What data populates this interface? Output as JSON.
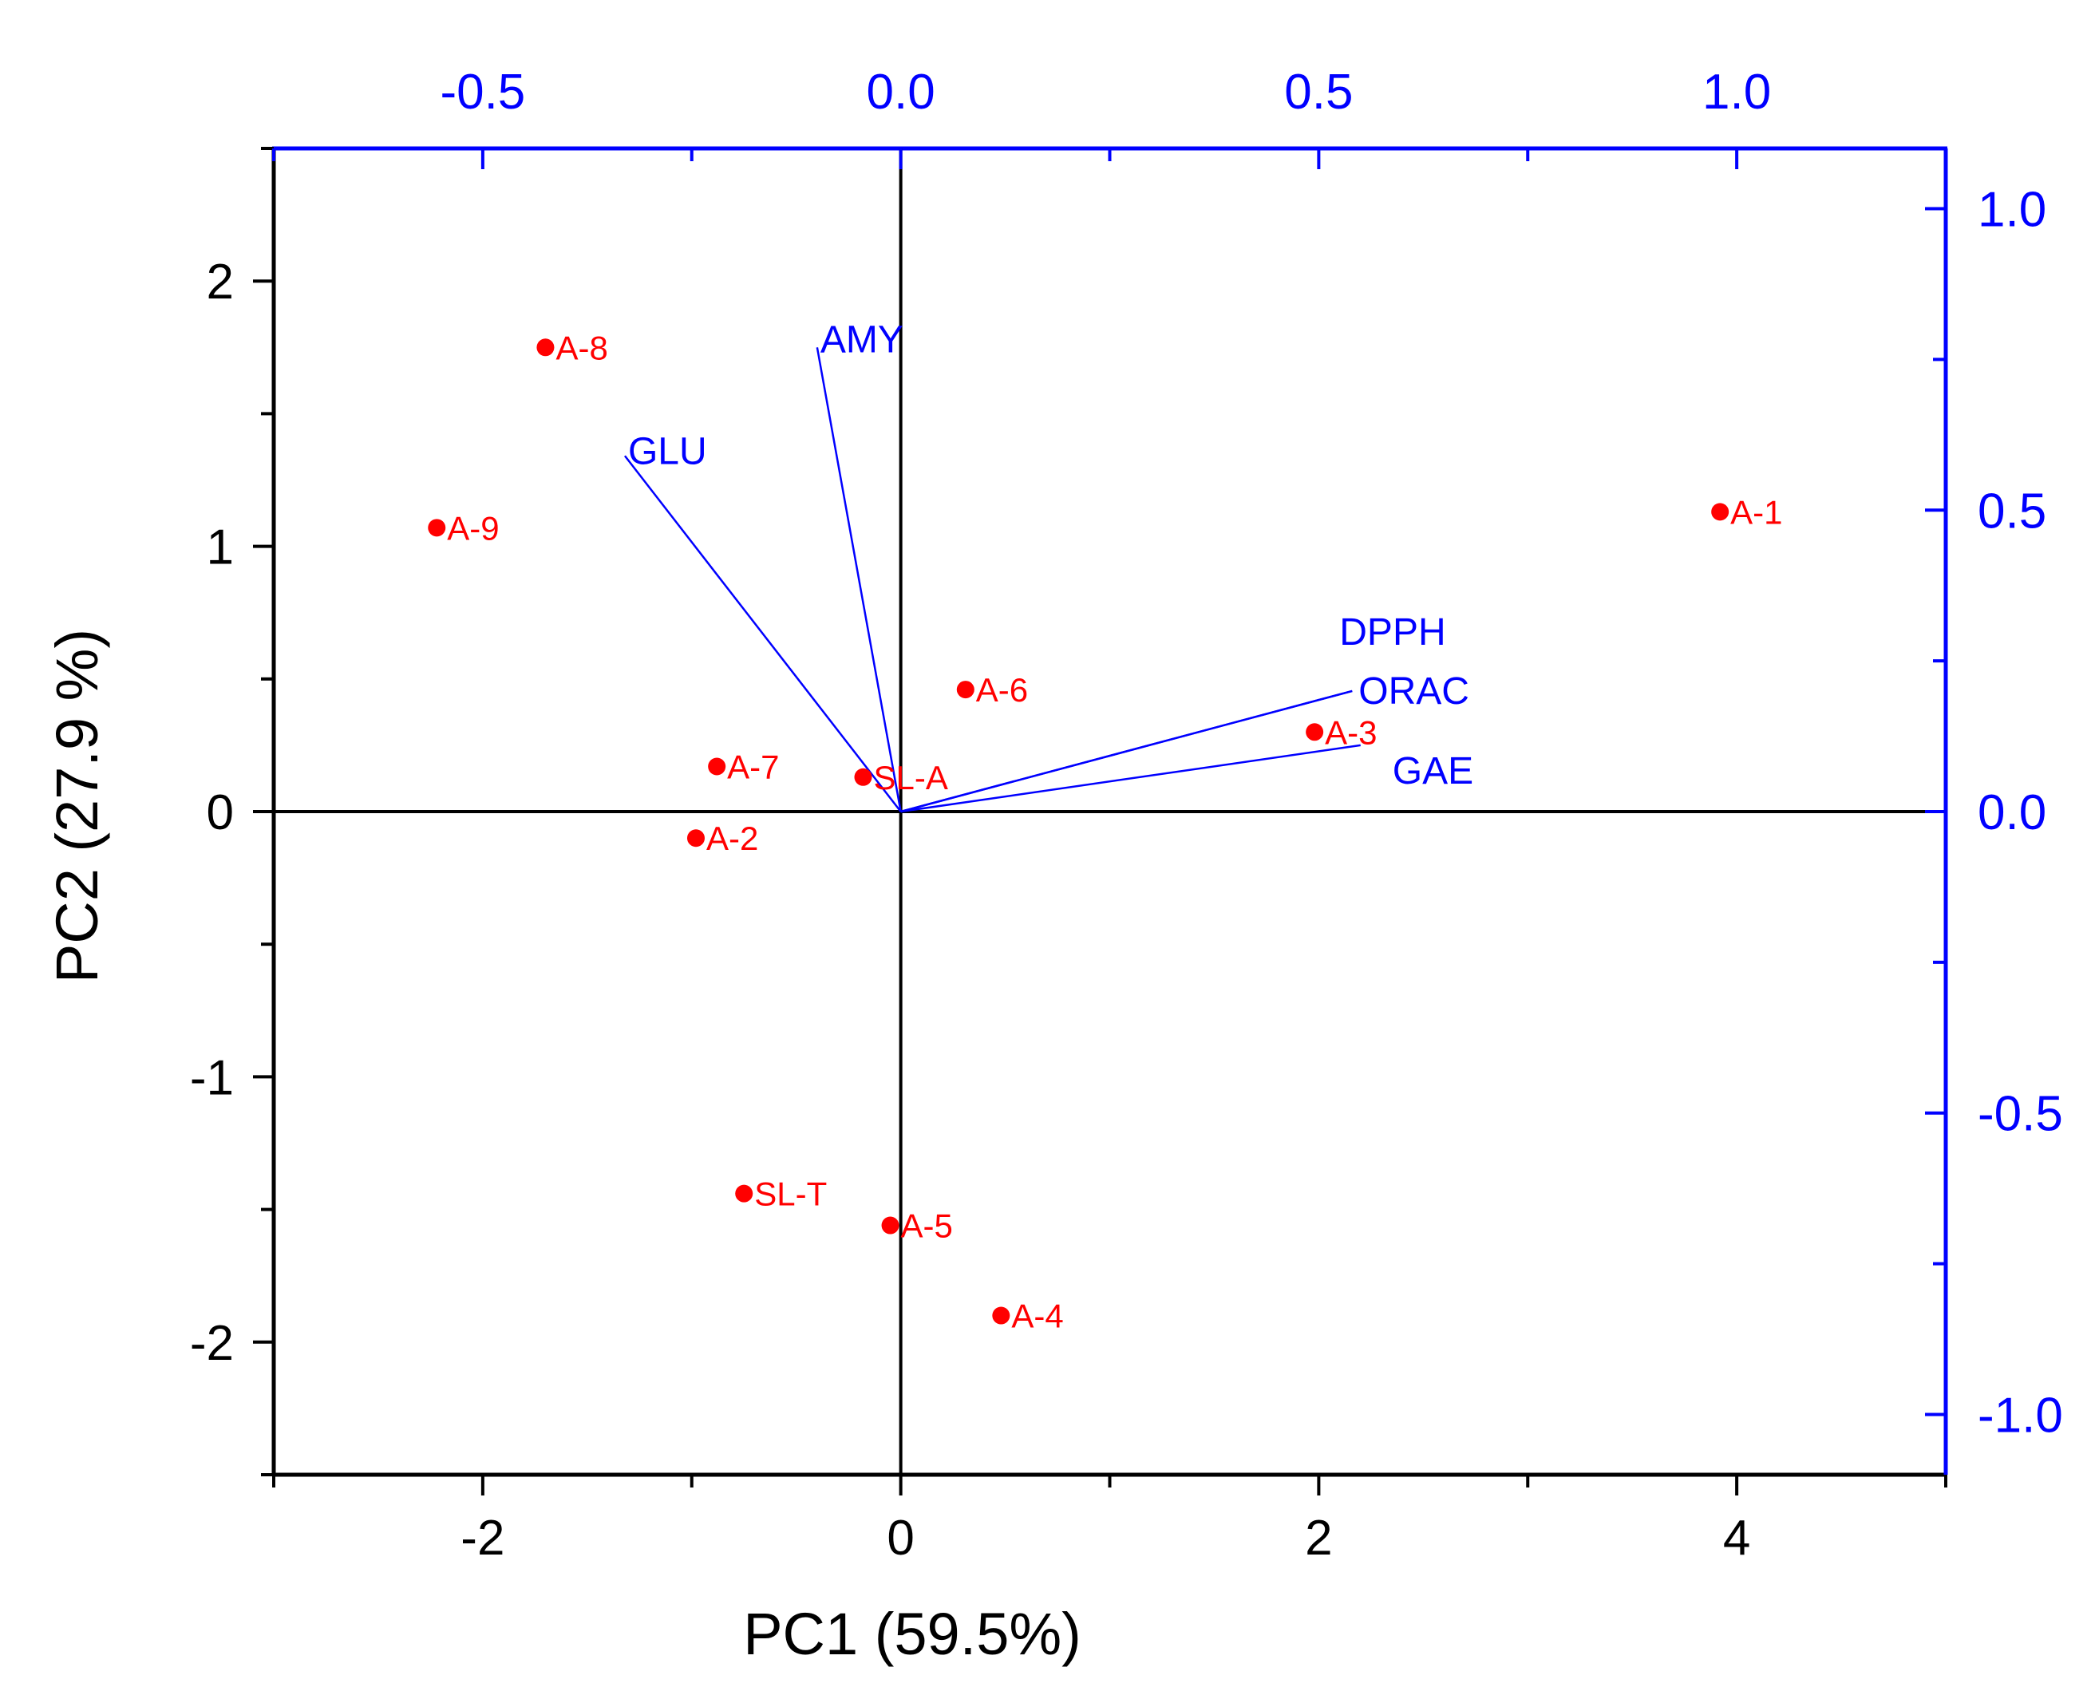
{
  "chart_data": {
    "type": "scatter",
    "subtype": "pca-biplot",
    "xlabel": "PC1 (59.5%)",
    "ylabel": "PC2 (27.9 %)",
    "xlim": [
      -3,
      5
    ],
    "ylim": [
      -2.5,
      2.5
    ],
    "xticks": [
      -2,
      0,
      2,
      4
    ],
    "xtick_labels": [
      "-2",
      "0",
      "2",
      "4"
    ],
    "yticks": [
      -2,
      -1,
      0,
      1,
      2
    ],
    "ytick_labels": [
      "-2",
      "-1",
      "0",
      "1",
      "2"
    ],
    "secondary_xlim": [
      -0.75,
      1.25
    ],
    "secondary_xticks": [
      -0.5,
      0.0,
      0.5,
      1.0
    ],
    "secondary_xtick_labels": [
      "-0.5",
      "0.0",
      "0.5",
      "1.0"
    ],
    "secondary_ylim": [
      -1.1,
      1.1
    ],
    "secondary_yticks": [
      -1.0,
      -0.5,
      0.0,
      0.5,
      1.0
    ],
    "secondary_ytick_labels": [
      "-1.0",
      "-0.5",
      "0.0",
      "0.5",
      "1.0"
    ],
    "scores": [
      {
        "label": "A-1",
        "x": 3.92,
        "y": 1.13
      },
      {
        "label": "A-2",
        "x": -0.98,
        "y": -0.1
      },
      {
        "label": "A-3",
        "x": 1.98,
        "y": 0.3
      },
      {
        "label": "A-4",
        "x": 0.48,
        "y": -1.9
      },
      {
        "label": "A-5",
        "x": -0.05,
        "y": -1.56
      },
      {
        "label": "A-6",
        "x": 0.31,
        "y": 0.46
      },
      {
        "label": "A-7",
        "x": -0.88,
        "y": 0.17
      },
      {
        "label": "A-8",
        "x": -1.7,
        "y": 1.75
      },
      {
        "label": "A-9",
        "x": -2.22,
        "y": 1.07
      },
      {
        "label": "SL-A",
        "x": -0.18,
        "y": 0.13
      },
      {
        "label": "SL-T",
        "x": -0.75,
        "y": -1.44
      }
    ],
    "loadings": [
      {
        "label": "AMY",
        "x": -0.1,
        "y": 0.77
      },
      {
        "label": "GLU",
        "x": -0.33,
        "y": 0.59
      },
      {
        "label": "DPPH",
        "x": 0.54,
        "y": 0.2
      },
      {
        "label": "ORAC",
        "x": 0.54,
        "y": 0.2
      },
      {
        "label": "GAE",
        "x": 0.55,
        "y": 0.11
      }
    ],
    "colors": {
      "scores": "#ff0000",
      "loadings": "#0000ff",
      "primary_axes": "#000000",
      "secondary_axes": "#0000ff"
    }
  }
}
